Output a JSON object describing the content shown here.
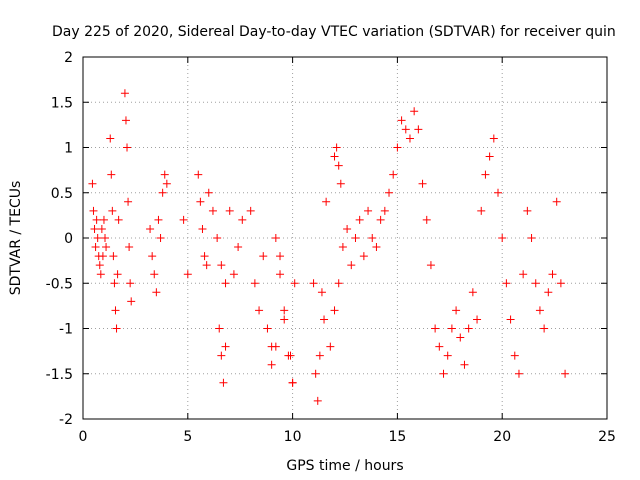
{
  "chart_data": {
    "type": "scatter",
    "title": "Day 225 of 2020, Sidereal Day-to-day VTEC variation (SDTVAR) for receiver quin",
    "xlabel": "GPS time / hours",
    "ylabel": "SDTVAR / TECUs",
    "xlim": [
      0,
      25
    ],
    "ylim": [
      -2,
      2
    ],
    "xticks": [
      0,
      5,
      10,
      15,
      20,
      25
    ],
    "yticks": [
      -2,
      -1.5,
      -1,
      -0.5,
      0,
      0.5,
      1,
      1.5,
      2
    ],
    "ytick_labels": [
      "-2",
      "-1.5",
      "-1",
      "-0.5",
      "0",
      "0.5",
      "1",
      "1.5",
      "2"
    ],
    "grid": true,
    "marker": "+",
    "color": "#ff0000",
    "series": [
      {
        "name": "SDTVAR",
        "x": [
          0.45,
          0.5,
          0.55,
          0.6,
          0.65,
          0.7,
          0.75,
          0.8,
          0.85,
          0.9,
          0.95,
          1.0,
          1.05,
          1.1,
          1.3,
          1.35,
          1.4,
          1.45,
          1.5,
          1.55,
          1.6,
          1.65,
          1.7,
          2.0,
          2.05,
          2.1,
          2.15,
          2.2,
          2.25,
          2.3,
          3.2,
          3.3,
          3.4,
          3.5,
          3.6,
          3.7,
          3.8,
          3.9,
          4.0,
          4.8,
          5.0,
          5.5,
          5.6,
          5.7,
          5.8,
          5.9,
          6.0,
          6.2,
          6.4,
          6.6,
          6.8,
          7.0,
          7.2,
          7.4,
          7.6,
          6.5,
          6.6,
          6.7,
          6.8,
          8.0,
          8.2,
          8.4,
          8.6,
          8.8,
          9.0,
          9.2,
          9.4,
          9.6,
          9.8,
          10.0,
          9.0,
          9.2,
          9.4,
          9.6,
          9.9,
          10.0,
          10.1,
          11.0,
          11.1,
          11.2,
          11.3,
          11.4,
          11.5,
          11.6,
          11.8,
          12.0,
          12.2,
          12.4,
          12.6,
          12.8,
          13.0,
          13.2,
          13.4,
          13.6,
          13.8,
          14.0,
          14.2,
          14.4,
          12.0,
          12.1,
          12.2,
          12.3,
          14.6,
          14.8,
          15.0,
          15.2,
          15.4,
          15.6,
          15.8,
          16.0,
          16.2,
          16.4,
          16.6,
          16.8,
          17.0,
          17.2,
          17.4,
          17.6,
          17.8,
          18.0,
          18.2,
          18.4,
          18.6,
          18.8,
          19.0,
          19.2,
          19.4,
          19.6,
          19.8,
          20.0,
          20.2,
          20.4,
          20.6,
          20.8,
          21.0,
          21.2,
          21.4,
          21.6,
          21.8,
          22.0,
          22.2,
          22.4,
          22.6,
          22.8,
          23.0
        ],
        "y": [
          0.6,
          0.3,
          0.1,
          -0.1,
          0.2,
          0.0,
          -0.2,
          -0.3,
          -0.4,
          0.1,
          -0.2,
          0.2,
          0.0,
          -0.1,
          1.1,
          0.7,
          0.3,
          -0.2,
          -0.5,
          -0.8,
          -1.0,
          -0.4,
          0.2,
          1.6,
          1.3,
          1.0,
          0.4,
          -0.1,
          -0.5,
          -0.7,
          0.1,
          -0.2,
          -0.4,
          -0.6,
          0.2,
          0.0,
          0.5,
          0.7,
          0.6,
          0.2,
          -0.4,
          0.7,
          0.4,
          0.1,
          -0.2,
          -0.3,
          0.5,
          0.3,
          0.0,
          -0.3,
          -0.5,
          0.3,
          -0.4,
          -0.1,
          0.2,
          -1.0,
          -1.3,
          -1.6,
          -1.2,
          0.3,
          -0.5,
          -0.8,
          -0.2,
          -1.0,
          -1.2,
          0.0,
          -0.4,
          -0.8,
          -1.3,
          -1.6,
          -1.4,
          -1.2,
          -0.2,
          -0.9,
          -1.3,
          -1.6,
          -0.5,
          -0.5,
          -1.5,
          -1.8,
          -1.3,
          -0.6,
          -0.9,
          0.4,
          -1.2,
          -0.8,
          -0.5,
          -0.1,
          0.1,
          -0.3,
          0.0,
          0.2,
          -0.2,
          0.3,
          0.0,
          -0.1,
          0.2,
          0.3,
          0.9,
          1.0,
          0.8,
          0.6,
          0.5,
          0.7,
          1.0,
          1.3,
          1.2,
          1.1,
          1.4,
          1.2,
          0.6,
          0.2,
          -0.3,
          -1.0,
          -1.2,
          -1.5,
          -1.3,
          -1.0,
          -0.8,
          -1.1,
          -1.4,
          -1.0,
          -0.6,
          -0.9,
          0.3,
          0.7,
          0.9,
          1.1,
          0.5,
          0.0,
          -0.5,
          -0.9,
          -1.3,
          -1.5,
          -0.4,
          0.3,
          0.0,
          -0.5,
          -0.8,
          -1.0,
          -0.6,
          -0.4,
          0.4,
          -0.5,
          -1.5
        ]
      }
    ]
  }
}
